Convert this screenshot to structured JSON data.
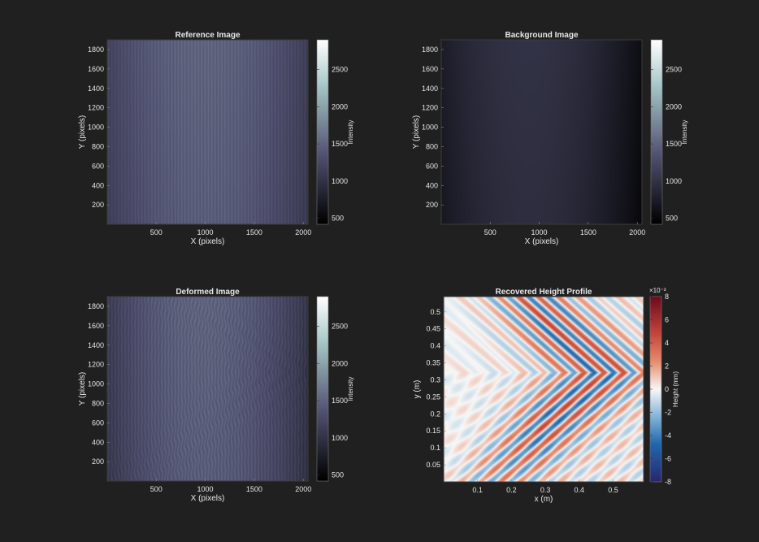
{
  "chart_data": [
    {
      "type": "heatmap",
      "title": "Reference Image",
      "xlabel": "X (pixels)",
      "ylabel": "Y (pixels)",
      "xticks": [
        500,
        1000,
        1500,
        2000
      ],
      "yticks": [
        200,
        400,
        600,
        800,
        1000,
        1200,
        1400,
        1600,
        1800
      ],
      "xlim": [
        1,
        2048
      ],
      "ylim": [
        1,
        1900
      ],
      "colorbar": {
        "label": "Intensity",
        "ticks": [
          500,
          1000,
          1500,
          2000,
          2500
        ],
        "range": [
          420,
          2900
        ],
        "colormap": "bone"
      },
      "pattern": "vertical fringes, bright center (~1500), darker edges",
      "peak_intensity": 1500,
      "edge_intensity": 1100
    },
    {
      "type": "heatmap",
      "title": "Background Image",
      "xlabel": "X (pixels)",
      "ylabel": "Y (pixels)",
      "xticks": [
        500,
        1000,
        1500,
        2000
      ],
      "yticks": [
        200,
        400,
        600,
        800,
        1000,
        1200,
        1400,
        1600,
        1800
      ],
      "xlim": [
        1,
        2048
      ],
      "ylim": [
        1,
        1900
      ],
      "colorbar": {
        "label": "Intensity",
        "ticks": [
          500,
          1000,
          1500,
          2000,
          2500
        ],
        "range": [
          420,
          2900
        ],
        "colormap": "bone"
      },
      "pattern": "smooth illumination, no fringes",
      "peak_intensity": 1050,
      "edge_intensity": 650
    },
    {
      "type": "heatmap",
      "title": "Deformed Image",
      "xlabel": "X (pixels)",
      "ylabel": "Y (pixels)",
      "xticks": [
        500,
        1000,
        1500,
        2000
      ],
      "yticks": [
        200,
        400,
        600,
        800,
        1000,
        1200,
        1400,
        1600,
        1800
      ],
      "xlim": [
        1,
        2048
      ],
      "ylim": [
        1,
        1900
      ],
      "colorbar": {
        "label": "Intensity",
        "ticks": [
          500,
          1000,
          1500,
          2000,
          2500
        ],
        "range": [
          420,
          2900
        ],
        "colormap": "bone"
      },
      "pattern": "vertical fringes distorted by chevron wave pattern",
      "peak_intensity": 1500,
      "edge_intensity": 1000
    },
    {
      "type": "heatmap",
      "title": "Recovered Height Profile",
      "xlabel": "x (m)",
      "ylabel": "y (m)",
      "xticks": [
        0.1,
        0.2,
        0.3,
        0.4,
        0.5
      ],
      "xtick_labels": [
        "0.1",
        "0.2",
        "0.3",
        "0.4",
        "0.5"
      ],
      "yticks": [
        0.05,
        0.1,
        0.15,
        0.2,
        0.25,
        0.3,
        0.35,
        0.4,
        0.45,
        0.5
      ],
      "ytick_labels": [
        "0.05",
        "0.1",
        "0.15",
        "0.2",
        "0.25",
        "0.3",
        "0.35",
        "0.4",
        "0.45",
        "0.5"
      ],
      "xlim": [
        0,
        0.59
      ],
      "ylim": [
        0,
        0.545
      ],
      "colorbar": {
        "label": "Height (mm)",
        "ticks": [
          -8,
          -6,
          -4,
          -2,
          0,
          2,
          4,
          6,
          8
        ],
        "range": [
          -8,
          8
        ],
        "multiplier": "×10⁻³",
        "colormap": "red-white-blue (diverging)"
      },
      "pattern": "chevron wave crests pointing right, apex near x≈0.55 m, y≈0.32 m",
      "amplitude": 0.004
    }
  ],
  "colors": {
    "background": "#202020",
    "text": "#e6e6e6",
    "axes_edge": "#3c3c3c"
  }
}
